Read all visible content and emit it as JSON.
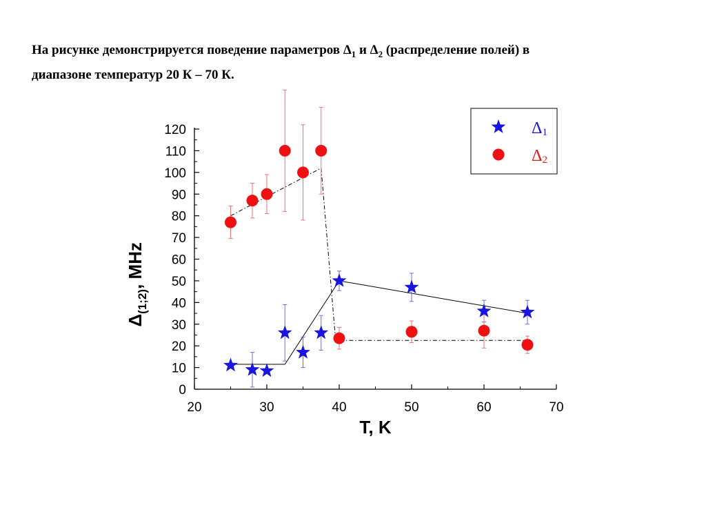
{
  "caption": {
    "line1_a": "На рисунке  демонстрируется поведение параметров Δ",
    "line1_sub1": "1",
    "line1_b": " и Δ",
    "line1_sub2": "2",
    "line1_c": " (распределение полей) в",
    "line2": "диапазоне температур 20 К – 70 К."
  },
  "colors": {
    "delta1": "#1a14e0",
    "delta2": "#ee1111",
    "delta1_errorbar": "#6a6ae8",
    "delta2_errorbar": "#f07070",
    "axis": "#000000"
  },
  "chart_data": {
    "type": "scatter",
    "xlabel": "T, K",
    "ylabel_main": "Δ",
    "ylabel_sub": "(1;2)",
    "ylabel_unit": ", MHz",
    "xlim": [
      20,
      70
    ],
    "ylim": [
      0,
      120
    ],
    "xticks": [
      20,
      30,
      40,
      50,
      60,
      70
    ],
    "yticks": [
      0,
      10,
      20,
      30,
      40,
      50,
      60,
      70,
      80,
      90,
      100,
      110,
      120
    ],
    "grid": false,
    "legend_position": "top-right",
    "series": [
      {
        "name": "Δ",
        "name_sub": "1",
        "marker": "star",
        "color_key": "delta1",
        "points": [
          {
            "x": 25,
            "y": 11,
            "err": 0
          },
          {
            "x": 28,
            "y": 9,
            "err": 8
          },
          {
            "x": 30,
            "y": 8.5,
            "err": 0
          },
          {
            "x": 32.5,
            "y": 26,
            "err": 13
          },
          {
            "x": 35,
            "y": 17,
            "err": 7
          },
          {
            "x": 37.5,
            "y": 26,
            "err": 8
          },
          {
            "x": 40,
            "y": 50,
            "err": 4.5
          },
          {
            "x": 50,
            "y": 47,
            "err": 6.5
          },
          {
            "x": 60,
            "y": 36,
            "err": 5
          },
          {
            "x": 66,
            "y": 35.5,
            "err": 5.5
          }
        ],
        "trend": [
          [
            25,
            11.5
          ],
          [
            32.5,
            11.5
          ],
          [
            40,
            50
          ],
          [
            66,
            35
          ]
        ],
        "trend_style": "solid"
      },
      {
        "name": "Δ",
        "name_sub": "2",
        "marker": "circle",
        "color_key": "delta2",
        "points": [
          {
            "x": 25,
            "y": 77,
            "err": 7.5
          },
          {
            "x": 28,
            "y": 87,
            "err": 8
          },
          {
            "x": 30,
            "y": 90,
            "err": 9
          },
          {
            "x": 32.5,
            "y": 110,
            "err": 28
          },
          {
            "x": 35,
            "y": 100,
            "err": 22
          },
          {
            "x": 37.5,
            "y": 110,
            "err": 20
          },
          {
            "x": 40,
            "y": 23.5,
            "err": 5
          },
          {
            "x": 50,
            "y": 26.5,
            "err": 5
          },
          {
            "x": 60,
            "y": 27,
            "err": 8
          },
          {
            "x": 66,
            "y": 20.5,
            "err": 4
          }
        ],
        "trend": [
          [
            25,
            80
          ],
          [
            37.5,
            102
          ],
          [
            39.5,
            22.5
          ],
          [
            66,
            22.5
          ]
        ],
        "trend_style": "dashdot"
      }
    ]
  }
}
